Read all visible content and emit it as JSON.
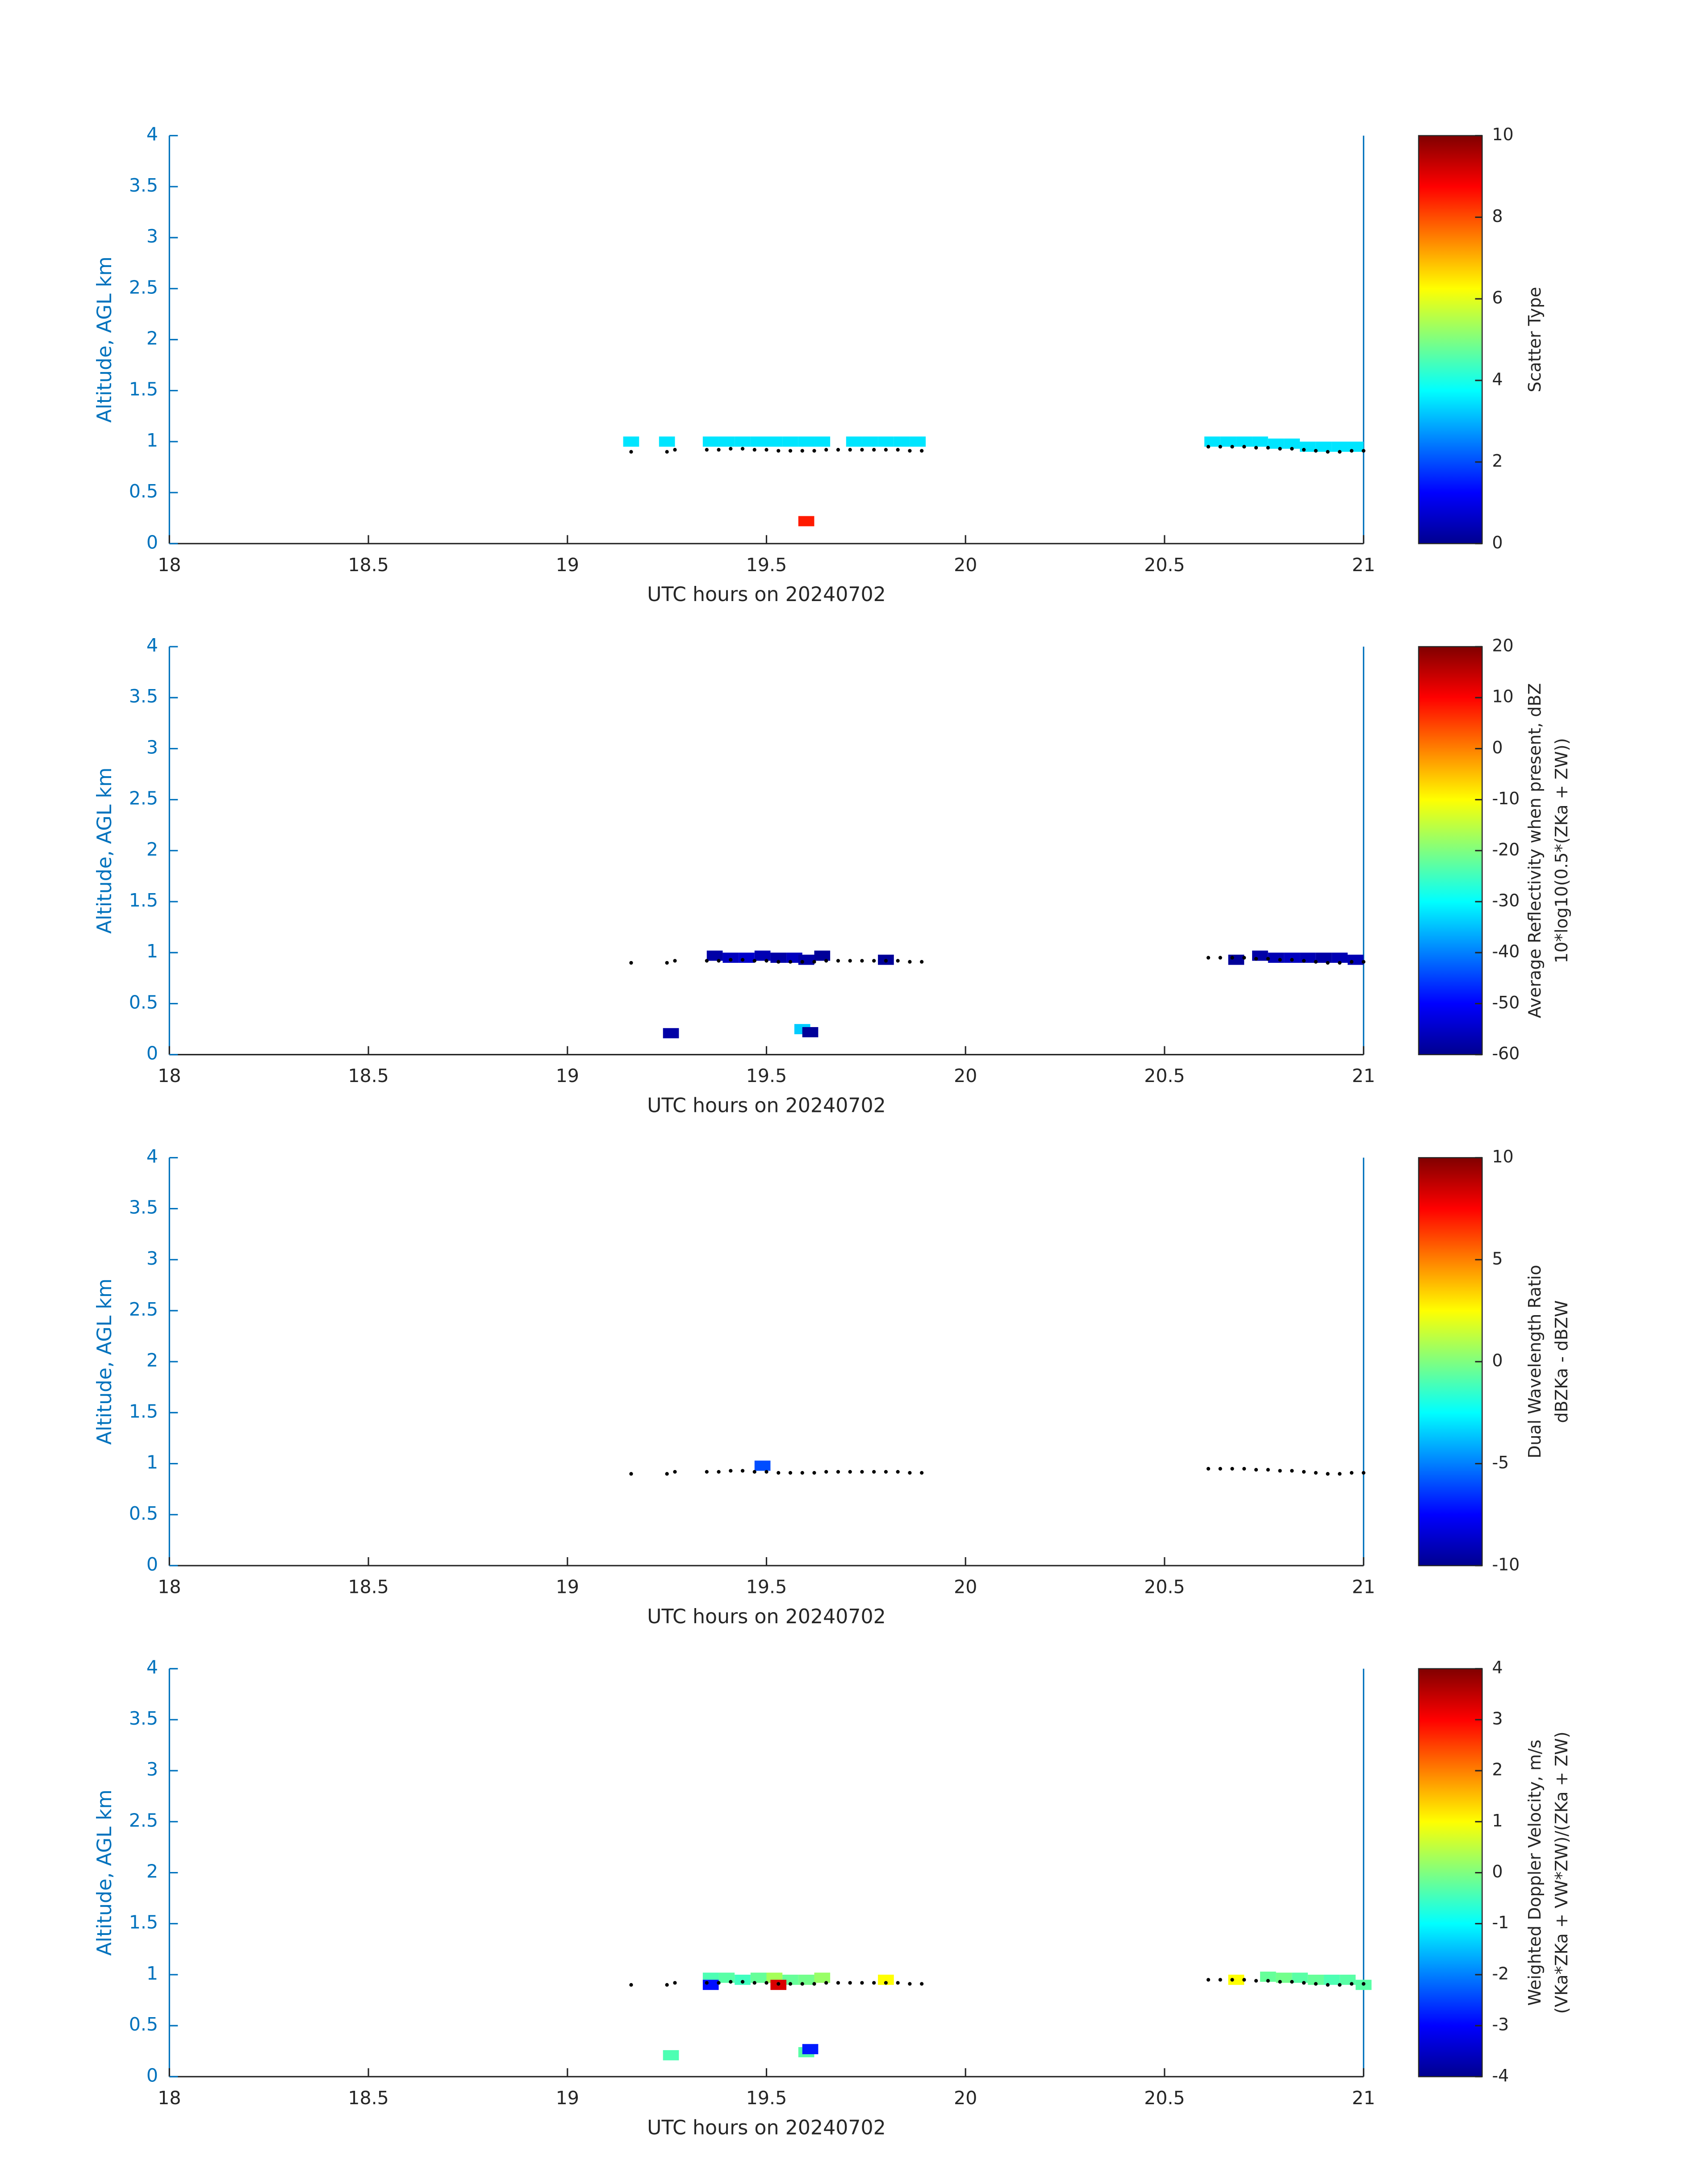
{
  "chart_data": [
    {
      "type": "heatmap",
      "xlabel": "UTC hours on 20240702",
      "ylabel": "Altitude, AGL km",
      "xlim": [
        18,
        21
      ],
      "xticks": [
        18,
        18.5,
        19,
        19.5,
        20,
        20.5,
        21
      ],
      "ylim": [
        0,
        4
      ],
      "yticks": [
        0,
        0.5,
        1,
        1.5,
        2,
        2.5,
        3,
        3.5,
        4
      ],
      "colormap": "jet",
      "clim": [
        0,
        10
      ],
      "cticks": [
        0,
        2,
        4,
        6,
        8,
        10
      ],
      "colorbar_label": [
        "Scatter Type"
      ],
      "cells": {
        "x": [
          19.16,
          19.25,
          19.36,
          19.4,
          19.44,
          19.48,
          19.52,
          19.56,
          19.6,
          19.64,
          19.72,
          19.76,
          19.8,
          19.84,
          19.88,
          20.62,
          20.66,
          20.7,
          20.74,
          20.78,
          20.82,
          20.86,
          20.9,
          20.94,
          20.98,
          19.6
        ],
        "y": [
          1,
          1,
          1,
          1,
          1,
          1,
          1,
          1,
          1,
          1,
          1,
          1,
          1,
          1,
          1,
          1,
          1,
          1,
          1,
          0.98,
          0.98,
          0.95,
          0.95,
          0.95,
          0.95,
          0.22
        ],
        "values": [
          3.5,
          3.5,
          3.5,
          3.5,
          3.5,
          3.5,
          3.5,
          3.5,
          3.5,
          3.5,
          3.5,
          3.5,
          3.5,
          3.5,
          3.5,
          3.5,
          3.5,
          3.5,
          3.5,
          3.5,
          3.5,
          3.5,
          3.5,
          3.5,
          3.5,
          8.5
        ]
      },
      "dots": {
        "color": "#000000",
        "x": [
          19.16,
          19.25,
          19.27,
          19.35,
          19.38,
          19.41,
          19.44,
          19.47,
          19.5,
          19.53,
          19.56,
          19.59,
          19.62,
          19.65,
          19.68,
          19.71,
          19.74,
          19.77,
          19.8,
          19.83,
          19.86,
          19.89,
          20.61,
          20.64,
          20.67,
          20.7,
          20.73,
          20.76,
          20.79,
          20.82,
          20.85,
          20.88,
          20.91,
          20.94,
          20.97,
          21.0
        ],
        "y": [
          0.9,
          0.9,
          0.92,
          0.92,
          0.92,
          0.93,
          0.93,
          0.92,
          0.92,
          0.91,
          0.91,
          0.91,
          0.91,
          0.92,
          0.92,
          0.92,
          0.92,
          0.92,
          0.92,
          0.92,
          0.91,
          0.91,
          0.95,
          0.95,
          0.95,
          0.95,
          0.94,
          0.94,
          0.93,
          0.93,
          0.92,
          0.91,
          0.9,
          0.9,
          0.91,
          0.91
        ]
      }
    },
    {
      "type": "heatmap",
      "xlabel": "UTC hours on 20240702",
      "ylabel": "Altitude, AGL km",
      "xlim": [
        18,
        21
      ],
      "xticks": [
        18,
        18.5,
        19,
        19.5,
        20,
        20.5,
        21
      ],
      "ylim": [
        0,
        4
      ],
      "yticks": [
        0,
        0.5,
        1,
        1.5,
        2,
        2.5,
        3,
        3.5,
        4
      ],
      "colormap": "jet",
      "clim": [
        -60,
        20
      ],
      "cticks": [
        -60,
        -50,
        -40,
        -30,
        -20,
        -10,
        0,
        10,
        20
      ],
      "colorbar_label": [
        "Average Reflectivity when present, dBZ",
        "10*log10(0.5*(ZKa + ZW))"
      ],
      "cells": {
        "x": [
          19.37,
          19.41,
          19.45,
          19.49,
          19.53,
          19.57,
          19.6,
          19.64,
          19.8,
          20.68,
          20.74,
          20.78,
          20.82,
          20.86,
          20.9,
          20.94,
          20.98,
          19.26,
          19.59,
          19.61
        ],
        "y": [
          0.97,
          0.95,
          0.95,
          0.97,
          0.95,
          0.95,
          0.93,
          0.97,
          0.93,
          0.93,
          0.97,
          0.95,
          0.95,
          0.95,
          0.95,
          0.95,
          0.93,
          0.21,
          0.25,
          0.22
        ],
        "values": [
          -57,
          -55,
          -54,
          -56,
          -57,
          -55,
          -57,
          -58,
          -58,
          -58,
          -57,
          -56,
          -55,
          -56,
          -57,
          -56,
          -56,
          -57,
          -34,
          -58
        ]
      },
      "dots": {
        "color": "#000000",
        "x": [
          19.16,
          19.25,
          19.27,
          19.35,
          19.38,
          19.41,
          19.44,
          19.47,
          19.5,
          19.53,
          19.56,
          19.59,
          19.62,
          19.65,
          19.68,
          19.71,
          19.74,
          19.77,
          19.8,
          19.83,
          19.86,
          19.89,
          20.61,
          20.64,
          20.67,
          20.7,
          20.73,
          20.76,
          20.79,
          20.82,
          20.85,
          20.88,
          20.91,
          20.94,
          20.97,
          21.0
        ],
        "y": [
          0.9,
          0.9,
          0.92,
          0.92,
          0.92,
          0.93,
          0.93,
          0.92,
          0.92,
          0.91,
          0.91,
          0.91,
          0.91,
          0.92,
          0.92,
          0.92,
          0.92,
          0.92,
          0.92,
          0.92,
          0.91,
          0.91,
          0.95,
          0.95,
          0.95,
          0.95,
          0.94,
          0.94,
          0.93,
          0.93,
          0.92,
          0.91,
          0.9,
          0.9,
          0.91,
          0.91
        ]
      }
    },
    {
      "type": "heatmap",
      "xlabel": "UTC hours on 20240702",
      "ylabel": "Altitude, AGL km",
      "xlim": [
        18,
        21
      ],
      "xticks": [
        18,
        18.5,
        19,
        19.5,
        20,
        20.5,
        21
      ],
      "ylim": [
        0,
        4
      ],
      "yticks": [
        0,
        0.5,
        1,
        1.5,
        2,
        2.5,
        3,
        3.5,
        4
      ],
      "colormap": "jet",
      "clim": [
        -10,
        10
      ],
      "cticks": [
        -10,
        -5,
        0,
        5,
        10
      ],
      "colorbar_label": [
        "Dual Wavelength Ratio",
        "dBZKa - dBZW"
      ],
      "cells": {
        "x": [
          19.49
        ],
        "y": [
          0.98
        ],
        "values": [
          -6
        ]
      },
      "dots": {
        "color": "#000000",
        "x": [
          19.16,
          19.25,
          19.27,
          19.35,
          19.38,
          19.41,
          19.44,
          19.47,
          19.5,
          19.53,
          19.56,
          19.59,
          19.62,
          19.65,
          19.68,
          19.71,
          19.74,
          19.77,
          19.8,
          19.83,
          19.86,
          19.89,
          20.61,
          20.64,
          20.67,
          20.7,
          20.73,
          20.76,
          20.79,
          20.82,
          20.85,
          20.88,
          20.91,
          20.94,
          20.97,
          21.0
        ],
        "y": [
          0.9,
          0.9,
          0.92,
          0.92,
          0.92,
          0.93,
          0.93,
          0.92,
          0.92,
          0.91,
          0.91,
          0.91,
          0.91,
          0.92,
          0.92,
          0.92,
          0.92,
          0.92,
          0.92,
          0.92,
          0.91,
          0.91,
          0.95,
          0.95,
          0.95,
          0.95,
          0.94,
          0.94,
          0.93,
          0.93,
          0.92,
          0.91,
          0.9,
          0.9,
          0.91,
          0.91
        ]
      }
    },
    {
      "type": "heatmap",
      "xlabel": "UTC hours on 20240702",
      "ylabel": "Altitude, AGL km",
      "xlim": [
        18,
        21
      ],
      "xticks": [
        18,
        18.5,
        19,
        19.5,
        20,
        20.5,
        21
      ],
      "ylim": [
        0,
        4
      ],
      "yticks": [
        0,
        0.5,
        1,
        1.5,
        2,
        2.5,
        3,
        3.5,
        4
      ],
      "colormap": "jet",
      "clim": [
        -4,
        4
      ],
      "cticks": [
        -4,
        -3,
        -2,
        -1,
        0,
        1,
        2,
        3,
        4
      ],
      "colorbar_label": [
        "Weighted Doppler Velocity, m/s",
        "(VKa*ZKa + VW*ZW)/(ZKa + ZW)"
      ],
      "cells": {
        "x": [
          19.36,
          19.4,
          19.44,
          19.48,
          19.52,
          19.56,
          19.6,
          19.64,
          19.8,
          20.68,
          20.76,
          20.8,
          20.84,
          20.88,
          20.92,
          20.96,
          21.0,
          19.36,
          19.53,
          19.26,
          19.6,
          19.61
        ],
        "y": [
          0.97,
          0.97,
          0.95,
          0.97,
          0.97,
          0.95,
          0.95,
          0.97,
          0.95,
          0.95,
          0.98,
          0.97,
          0.97,
          0.95,
          0.95,
          0.95,
          0.9,
          0.9,
          0.9,
          0.21,
          0.24,
          0.27
        ],
        "values": [
          -0.4,
          -0.3,
          -0.5,
          -0.2,
          0.3,
          -0.2,
          -0.1,
          0.2,
          1.0,
          1.0,
          -0.2,
          -0.1,
          -0.3,
          -0.2,
          -0.4,
          -0.3,
          -0.3,
          -2.9,
          3.3,
          -0.4,
          -0.3,
          -2.8
        ]
      },
      "dots": {
        "color": "#000000",
        "x": [
          19.16,
          19.25,
          19.27,
          19.35,
          19.38,
          19.41,
          19.44,
          19.47,
          19.5,
          19.53,
          19.56,
          19.59,
          19.62,
          19.65,
          19.68,
          19.71,
          19.74,
          19.77,
          19.8,
          19.83,
          19.86,
          19.89,
          20.61,
          20.64,
          20.67,
          20.7,
          20.73,
          20.76,
          20.79,
          20.82,
          20.85,
          20.88,
          20.91,
          20.94,
          20.97,
          21.0
        ],
        "y": [
          0.9,
          0.9,
          0.92,
          0.92,
          0.92,
          0.93,
          0.93,
          0.92,
          0.92,
          0.91,
          0.91,
          0.91,
          0.91,
          0.92,
          0.92,
          0.92,
          0.92,
          0.92,
          0.92,
          0.92,
          0.91,
          0.91,
          0.95,
          0.95,
          0.95,
          0.95,
          0.94,
          0.94,
          0.93,
          0.93,
          0.92,
          0.91,
          0.9,
          0.9,
          0.91,
          0.91
        ]
      }
    }
  ]
}
